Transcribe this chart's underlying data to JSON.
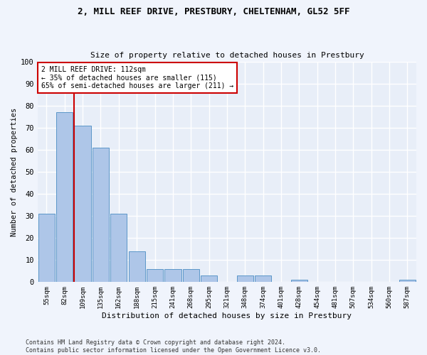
{
  "title1": "2, MILL REEF DRIVE, PRESTBURY, CHELTENHAM, GL52 5FF",
  "title2": "Size of property relative to detached houses in Prestbury",
  "xlabel": "Distribution of detached houses by size in Prestbury",
  "ylabel": "Number of detached properties",
  "bar_labels": [
    "55sqm",
    "82sqm",
    "109sqm",
    "135sqm",
    "162sqm",
    "188sqm",
    "215sqm",
    "241sqm",
    "268sqm",
    "295sqm",
    "321sqm",
    "348sqm",
    "374sqm",
    "401sqm",
    "428sqm",
    "454sqm",
    "481sqm",
    "507sqm",
    "534sqm",
    "560sqm",
    "587sqm"
  ],
  "bar_values": [
    31,
    77,
    71,
    61,
    31,
    14,
    6,
    6,
    6,
    3,
    0,
    3,
    3,
    0,
    1,
    0,
    0,
    0,
    0,
    0,
    1
  ],
  "bar_color": "#aec6e8",
  "bar_edge_color": "#5b96c8",
  "annotation_text": "2 MILL REEF DRIVE: 112sqm\n← 35% of detached houses are smaller (115)\n65% of semi-detached houses are larger (211) →",
  "annotation_box_color": "#ffffff",
  "annotation_box_edge_color": "#cc0000",
  "vline_color": "#cc0000",
  "background_color": "#e8eef8",
  "grid_color": "#ffffff",
  "footer_text": "Contains HM Land Registry data © Crown copyright and database right 2024.\nContains public sector information licensed under the Open Government Licence v3.0.",
  "ylim": [
    0,
    100
  ],
  "yticks": [
    0,
    10,
    20,
    30,
    40,
    50,
    60,
    70,
    80,
    90,
    100
  ],
  "fig_facecolor": "#f0f4fc"
}
